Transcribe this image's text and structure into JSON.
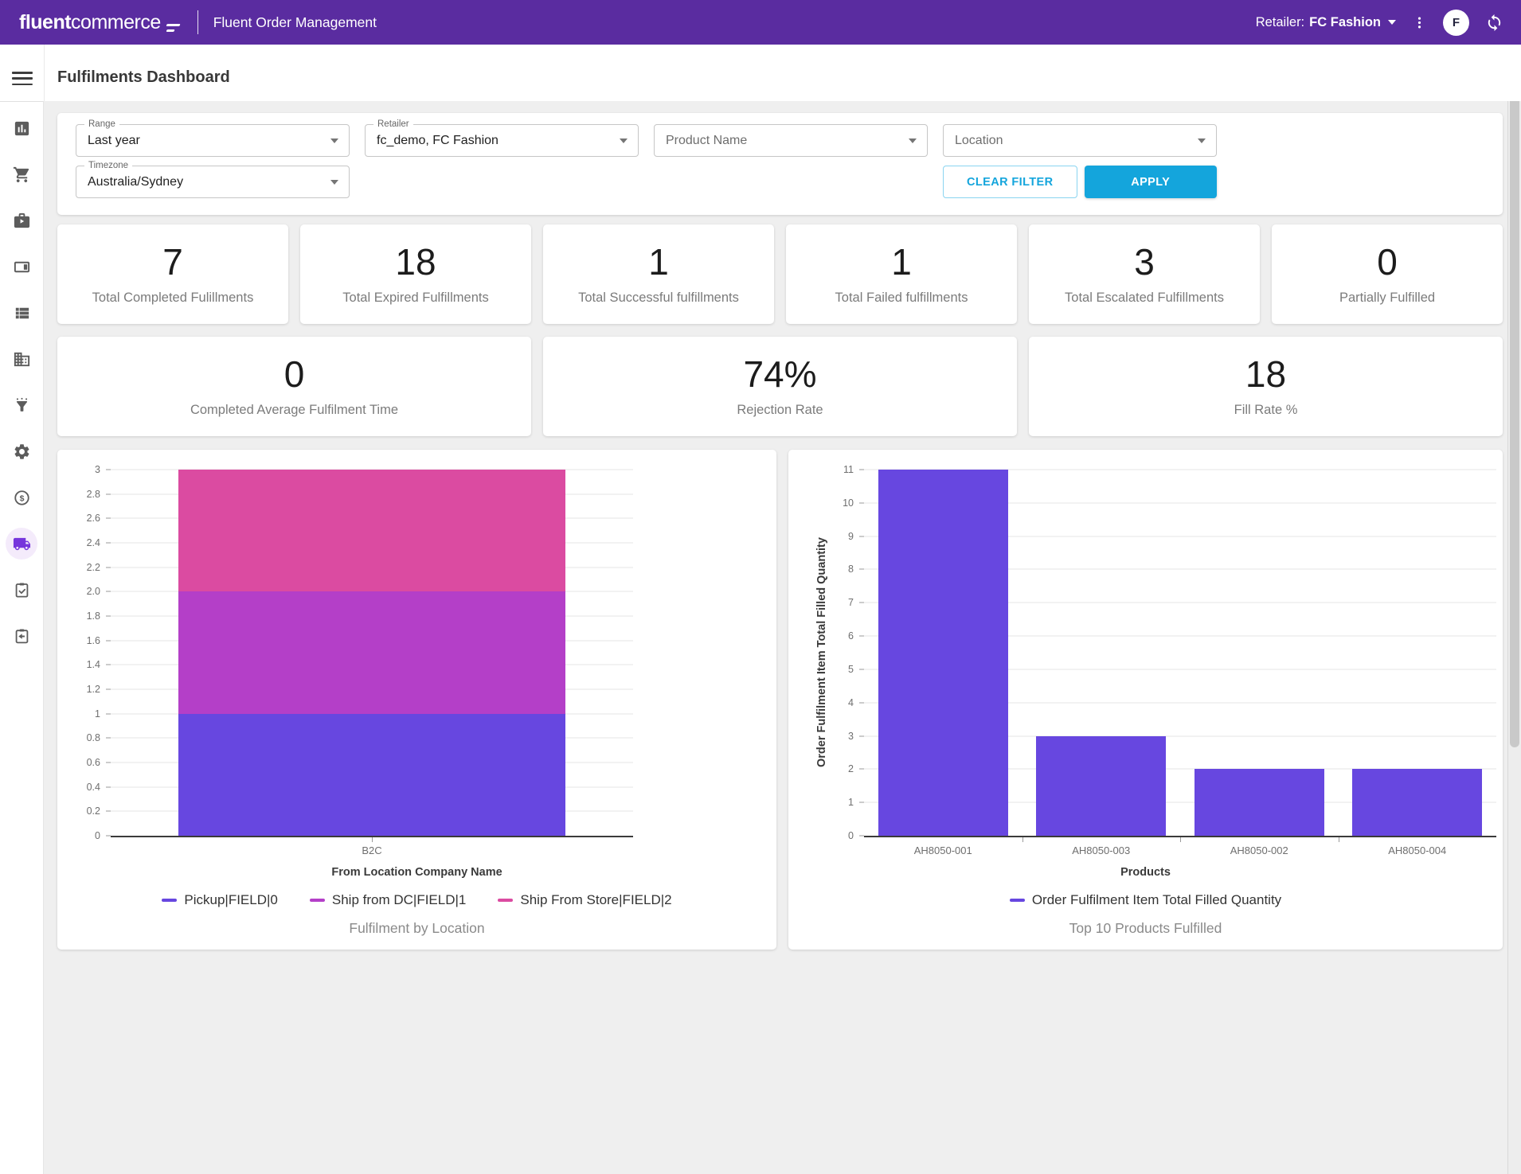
{
  "header": {
    "logo_primary": "fluent",
    "logo_secondary": "commerce",
    "app_title": "Fluent Order Management",
    "retailer_label": "Retailer:",
    "retailer_value": "FC Fashion",
    "avatar_initial": "F"
  },
  "page": {
    "title": "Fulfilments Dashboard"
  },
  "colors": {
    "header_bg": "#5A2CA0",
    "accent": "#14A5DC",
    "active_nav": "#7635DC",
    "chart_indigo": "#6747E0",
    "chart_purple": "#B43FC8",
    "chart_pink": "#DB4BA1"
  },
  "sidebar": {
    "items": [
      {
        "icon": "bar-chart-icon",
        "active": false
      },
      {
        "icon": "shopping-cart-icon",
        "active": false
      },
      {
        "icon": "briefcase-play-icon",
        "active": false
      },
      {
        "icon": "split-panel-icon",
        "active": false
      },
      {
        "icon": "list-icon",
        "active": false
      },
      {
        "icon": "building-icon",
        "active": false
      },
      {
        "icon": "funnel-icon",
        "active": false
      },
      {
        "icon": "gear-icon",
        "active": false
      },
      {
        "icon": "dollar-circle-icon",
        "active": false
      },
      {
        "icon": "truck-icon",
        "active": true
      },
      {
        "icon": "clipboard-check-icon",
        "active": false
      },
      {
        "icon": "clipboard-return-icon",
        "active": false
      }
    ]
  },
  "filters": {
    "fields": [
      {
        "name": "range",
        "type": "labeled",
        "label": "Range",
        "value": "Last year"
      },
      {
        "name": "retailer",
        "type": "labeled",
        "label": "Retailer",
        "value": "fc_demo, FC Fashion"
      },
      {
        "name": "product-name",
        "type": "placeholder",
        "label": "",
        "value": "Product Name"
      },
      {
        "name": "location",
        "type": "placeholder",
        "label": "",
        "value": "Location"
      },
      {
        "name": "timezone",
        "type": "labeled",
        "label": "Timezone",
        "value": "Australia/Sydney"
      }
    ],
    "clear_label": "CLEAR FILTER",
    "apply_label": "APPLY"
  },
  "stats_row1": [
    {
      "value": "7",
      "label": "Total Completed Fulillments"
    },
    {
      "value": "18",
      "label": "Total Expired Fulfillments"
    },
    {
      "value": "1",
      "label": "Total Successful fulfillments"
    },
    {
      "value": "1",
      "label": "Total Failed fulfillments"
    },
    {
      "value": "3",
      "label": "Total Escalated Fulfillments"
    },
    {
      "value": "0",
      "label": "Partially Fulfilled"
    }
  ],
  "stats_row2": [
    {
      "value": "0",
      "label": "Completed Average Fulfilment Time"
    },
    {
      "value": "74%",
      "label": "Rejection Rate"
    },
    {
      "value": "18",
      "label": "Fill Rate %"
    }
  ],
  "chart_data": [
    {
      "type": "bar",
      "stacked": true,
      "categories": [
        "B2C"
      ],
      "series": [
        {
          "name": "Pickup|FIELD|0",
          "values": [
            1
          ],
          "color": "#6747E0"
        },
        {
          "name": "Ship from DC|FIELD|1",
          "values": [
            1
          ],
          "color": "#B43FC8"
        },
        {
          "name": "Ship From Store|FIELD|2",
          "values": [
            1
          ],
          "color": "#DB4BA1"
        }
      ],
      "xlabel": "From Location Company Name",
      "ylabel": "",
      "ylim": [
        0,
        3
      ],
      "ytick_step": 0.2,
      "title": "Fulfilment by Location",
      "legend_position": "bottom",
      "grid": true
    },
    {
      "type": "bar",
      "stacked": false,
      "categories": [
        "AH8050-001",
        "AH8050-003",
        "AH8050-002",
        "AH8050-004"
      ],
      "series": [
        {
          "name": "Order Fulfilment Item Total Filled Quantity",
          "values": [
            11,
            3,
            2,
            2
          ],
          "color": "#6747E0"
        }
      ],
      "xlabel": "Products",
      "ylabel": "Order Fulfilment Item Total Filled Quantity",
      "ylim": [
        0,
        11
      ],
      "ytick_step": 1,
      "title": "Top 10 Products Fulfilled",
      "legend_position": "bottom",
      "grid": true
    }
  ]
}
